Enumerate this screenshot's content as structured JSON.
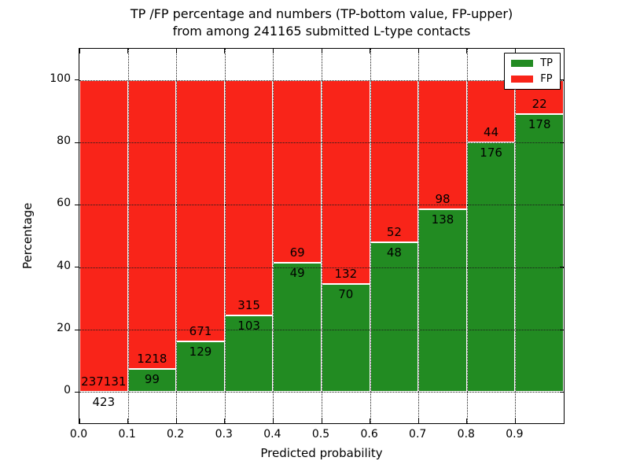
{
  "title": {
    "line1": "TP /FP percentage and numbers (TP-bottom value, FP-upper)",
    "line2": "from among 241165 submitted L-type contacts"
  },
  "colors": {
    "tp": "#228b22",
    "fp": "#f92419",
    "grid": "#1a1a1a",
    "bar_edge": "#ffffff",
    "axis": "#000000"
  },
  "legend": {
    "position": "upper right",
    "entries": [
      {
        "label": "TP",
        "color_key": "tp"
      },
      {
        "label": "FP",
        "color_key": "fp"
      }
    ]
  },
  "chart_data": {
    "type": "bar",
    "stacked": true,
    "title": "TP /FP percentage and numbers (TP-bottom value, FP-upper) from among 241165 submitted L-type contacts",
    "total_submitted": 241165,
    "contact_type": "L-type",
    "xlabel": "Predicted probability",
    "ylabel": "Percentage",
    "x_ticks": [
      0.0,
      0.1,
      0.2,
      0.3,
      0.4,
      0.5,
      0.6,
      0.7,
      0.8,
      0.9
    ],
    "x_tick_labels": [
      "0.0",
      "0.1",
      "0.2",
      "0.3",
      "0.4",
      "0.5",
      "0.6",
      "0.7",
      "0.8",
      "0.9"
    ],
    "y_ticks": [
      0,
      20,
      40,
      60,
      80,
      100
    ],
    "xlim": [
      0.0,
      1.0
    ],
    "ylim": [
      -10,
      110
    ],
    "grid": "dotted",
    "legend_position": "upper right",
    "bin_width": 0.1,
    "series": [
      {
        "name": "TP",
        "values": [
          423,
          99,
          129,
          103,
          49,
          70,
          48,
          138,
          176,
          178
        ]
      },
      {
        "name": "FP",
        "values": [
          237131,
          1218,
          671,
          315,
          69,
          132,
          52,
          98,
          44,
          22
        ]
      }
    ],
    "bins": [
      {
        "x_start": 0.0,
        "tp": 423,
        "fp": 237131,
        "tp_pct": 0.18
      },
      {
        "x_start": 0.1,
        "tp": 99,
        "fp": 1218,
        "tp_pct": 7.52
      },
      {
        "x_start": 0.2,
        "tp": 129,
        "fp": 671,
        "tp_pct": 16.13
      },
      {
        "x_start": 0.3,
        "tp": 103,
        "fp": 315,
        "tp_pct": 24.64
      },
      {
        "x_start": 0.4,
        "tp": 49,
        "fp": 69,
        "tp_pct": 41.53
      },
      {
        "x_start": 0.5,
        "tp": 70,
        "fp": 132,
        "tp_pct": 34.65
      },
      {
        "x_start": 0.6,
        "tp": 48,
        "fp": 52,
        "tp_pct": 48.0
      },
      {
        "x_start": 0.7,
        "tp": 138,
        "fp": 98,
        "tp_pct": 58.47
      },
      {
        "x_start": 0.8,
        "tp": 176,
        "fp": 44,
        "tp_pct": 80.0
      },
      {
        "x_start": 0.9,
        "tp": 178,
        "fp": 22,
        "tp_pct": 89.0
      }
    ]
  }
}
